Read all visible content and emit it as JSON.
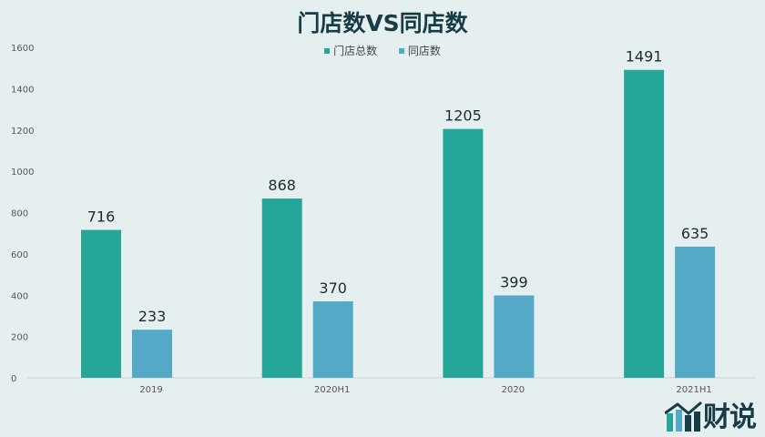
{
  "chart_data": {
    "type": "bar",
    "title": "门店数VS同店数",
    "categories": [
      "2019",
      "2020H1",
      "2020",
      "2021H1"
    ],
    "series": [
      {
        "name": "门店总数",
        "values": [
          716,
          868,
          1205,
          1491
        ],
        "color": "#26a699"
      },
      {
        "name": "同店数",
        "values": [
          233,
          370,
          399,
          635
        ],
        "color": "#54aac6"
      }
    ],
    "ylim": [
      0,
      1600
    ],
    "yticks": [
      0,
      200,
      400,
      600,
      800,
      1000,
      1200,
      1400,
      1600
    ],
    "grid": false,
    "legend": "top-center"
  },
  "logo": {
    "text": "财说"
  }
}
